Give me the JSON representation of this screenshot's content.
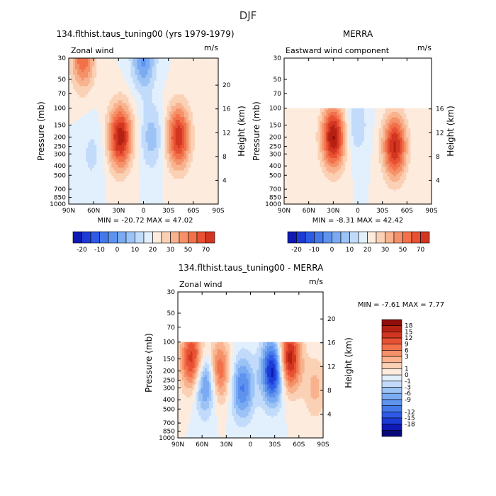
{
  "title": "DJF",
  "colors": {
    "neg": [
      "#08087a",
      "#0f1ab4",
      "#1c3bd6",
      "#2e5ae6",
      "#4479ea",
      "#5e93ee",
      "#7aabf2",
      "#9cc3f6",
      "#c2dbfa",
      "#e2effd"
    ],
    "pos": [
      "#fdebdd",
      "#fbd1b5",
      "#f8b38e",
      "#f59169",
      "#f2714b",
      "#e85134",
      "#d23620",
      "#b52112",
      "#8f0d0a"
    ],
    "frame": "#000000"
  },
  "chart_data": [
    {
      "type": "heatmap",
      "title": "134.flthist.taus_tuning00 (yrs 1979-1979)",
      "label_left": "Zonal wind",
      "units": "m/s",
      "xlabel": "",
      "ylabel": "Pressure (mb)",
      "ylabel_right": "Height (km)",
      "x_ticks": [
        "90N",
        "60N",
        "30N",
        "0",
        "30S",
        "60S",
        "90S"
      ],
      "x_values": [
        90,
        60,
        30,
        0,
        -30,
        -60,
        -90
      ],
      "y_ticks": [
        "30",
        "50",
        "70",
        "100",
        "150",
        "200",
        "250",
        "300",
        "400",
        "500",
        "700",
        "850",
        "1000"
      ],
      "y_values": [
        30,
        50,
        70,
        100,
        150,
        200,
        250,
        300,
        400,
        500,
        700,
        850,
        1000
      ],
      "yright_ticks": [
        "20",
        "16",
        "12",
        "8",
        "4"
      ],
      "ylim": [
        1000,
        30
      ],
      "xlim": [
        90,
        -90
      ],
      "min": -20.72,
      "max": 47.02,
      "stats": "MIN = -20.72   MAX =  47.02",
      "data_top": 30,
      "features": [
        {
          "lat": 28,
          "p": 200,
          "value": 40
        },
        {
          "lat": -42,
          "p": 200,
          "value": 35
        },
        {
          "lat": 73,
          "p": 30,
          "value": 25
        },
        {
          "lat": 0,
          "p": 30,
          "value": -20
        },
        {
          "lat": -10,
          "p": 200,
          "value": -12
        },
        {
          "lat": 62,
          "p": 300,
          "value": -6
        }
      ],
      "colorbar_labels": [
        "-20",
        "-10",
        "0",
        "10",
        "20",
        "30",
        "50",
        "70"
      ],
      "colorbar_levels": [
        "-20",
        "-15",
        "-10",
        "-5",
        "0",
        "5",
        "10",
        "15",
        "20",
        "25",
        "30",
        "35",
        "40",
        "50",
        "60",
        "70"
      ]
    },
    {
      "type": "heatmap",
      "title": "MERRA",
      "label_left": "Eastward wind component",
      "units": "m/s",
      "xlabel": "",
      "ylabel": "Pressure (mb)",
      "ylabel_right": "Height (km)",
      "x_ticks": [
        "90N",
        "60N",
        "30N",
        "0",
        "30S",
        "60S",
        "90S"
      ],
      "x_values": [
        90,
        60,
        30,
        0,
        -30,
        -60,
        -90
      ],
      "y_ticks": [
        "30",
        "50",
        "70",
        "100",
        "150",
        "200",
        "250",
        "300",
        "400",
        "500",
        "700",
        "850",
        "1000"
      ],
      "y_values": [
        30,
        50,
        70,
        100,
        150,
        200,
        250,
        300,
        400,
        500,
        700,
        850,
        1000
      ],
      "yright_ticks": [
        "16",
        "12",
        "8",
        "4"
      ],
      "ylim": [
        1000,
        30
      ],
      "xlim": [
        90,
        -90
      ],
      "min": -8.31,
      "max": 42.42,
      "stats": "MIN =  -8.31   MAX =  42.42",
      "data_top": 100,
      "features": [
        {
          "lat": 30,
          "p": 200,
          "value": 38
        },
        {
          "lat": -45,
          "p": 250,
          "value": 34
        },
        {
          "lat": 2,
          "p": 150,
          "value": -8
        }
      ],
      "colorbar_labels": [
        "-20",
        "-10",
        "0",
        "10",
        "20",
        "30",
        "50",
        "70"
      ],
      "colorbar_levels": [
        "-20",
        "-15",
        "-10",
        "-5",
        "0",
        "5",
        "10",
        "15",
        "20",
        "25",
        "30",
        "35",
        "40",
        "50",
        "60",
        "70"
      ]
    },
    {
      "type": "heatmap",
      "title": "134.flthist.taus_tuning00 - MERRA",
      "label_left": "Zonal wind",
      "units": "m/s",
      "xlabel": "",
      "ylabel": "Pressure (mb)",
      "ylabel_right": "Height (km)",
      "x_ticks": [
        "90N",
        "60N",
        "30N",
        "0",
        "30S",
        "60S",
        "90S"
      ],
      "x_values": [
        90,
        60,
        30,
        0,
        -30,
        -60,
        -90
      ],
      "y_ticks": [
        "30",
        "50",
        "70",
        "100",
        "150",
        "200",
        "250",
        "300",
        "400",
        "500",
        "700",
        "850",
        "1000"
      ],
      "y_values": [
        30,
        50,
        70,
        100,
        150,
        200,
        250,
        300,
        400,
        500,
        700,
        850,
        1000
      ],
      "yright_ticks": [
        "20",
        "16",
        "12",
        "8",
        "4"
      ],
      "ylim": [
        1000,
        30
      ],
      "xlim": [
        90,
        -90
      ],
      "min": -7.61,
      "max": 7.77,
      "stats": "MIN =  -7.61   MAX =   7.77",
      "data_top": 100,
      "features": [
        {
          "lat": 72,
          "p": 150,
          "value": 6
        },
        {
          "lat": 40,
          "p": 200,
          "value": 5
        },
        {
          "lat": 55,
          "p": 250,
          "value": -5
        },
        {
          "lat": 10,
          "p": 300,
          "value": -4
        },
        {
          "lat": -28,
          "p": 200,
          "value": -7
        },
        {
          "lat": -48,
          "p": 150,
          "value": 7
        },
        {
          "lat": -80,
          "p": 300,
          "value": 2
        }
      ],
      "colorbar_labels": [
        "18",
        "15",
        "12",
        "9",
        "6",
        "3",
        "1",
        "0",
        "-1",
        "-3",
        "-6",
        "-9",
        "-12",
        "-15",
        "-18"
      ]
    }
  ]
}
